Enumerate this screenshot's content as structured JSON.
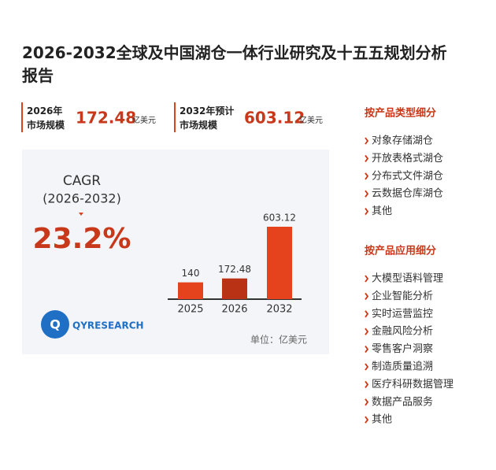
{
  "header": {
    "title": "2026-2032全球及中国湖仓一体行业研究及十五五规划分析报告"
  },
  "stats": [
    {
      "label": "2026年市场规模",
      "value": 172.48,
      "unit": "亿美元"
    },
    {
      "label": "2032年预计市场规模",
      "value": 603.12,
      "unit": "亿美元"
    }
  ],
  "cagr": {
    "label": "CAGR",
    "period": "(2026-2032)",
    "value": "23.2%"
  },
  "chart_data": {
    "type": "bar",
    "categories": [
      "2025",
      "2026",
      "2032"
    ],
    "values": [
      140,
      172.48,
      603.12
    ],
    "colors": [
      "#e5431d",
      "#b93216",
      "#e5431d"
    ],
    "unit": "单位：亿美元"
  },
  "logo": {
    "text": "QYRESEARCH"
  },
  "lists": [
    {
      "heading": "按产品类型细分",
      "items": [
        "对象存储湖仓",
        "开放表格式湖仓",
        "分布式文件湖仓",
        "云数据仓库湖仓",
        "其他"
      ]
    },
    {
      "heading": "按产品应用细分",
      "items": [
        "大模型语料管理",
        "企业智能分析",
        "实时运营监控",
        "金融风险分析",
        "零售客户洞察",
        "制造质量追溯",
        "医疗科研数据管理",
        "数据产品服务",
        "其他"
      ]
    }
  ]
}
